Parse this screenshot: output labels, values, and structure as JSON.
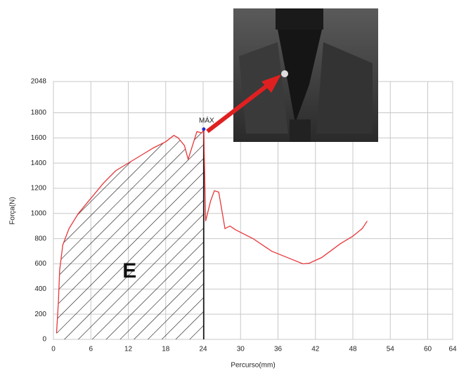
{
  "chart_data": {
    "type": "line",
    "x_label": "Percurso(mm)",
    "y_label": "Força(N)",
    "x": [
      0.5,
      0.8,
      1,
      1.5,
      2.5,
      4,
      6,
      8,
      10,
      12,
      14,
      16,
      18,
      19.3,
      20,
      21,
      21.6,
      23,
      23.8,
      24.1,
      24.4,
      25.2,
      25.8,
      26.5,
      27.5,
      28.3,
      29.2,
      32,
      35,
      38,
      40,
      41,
      43,
      46,
      48,
      49.5,
      50.3
    ],
    "series": [
      {
        "color": "#e8363a",
        "values": [
          50,
          300,
          550,
          750,
          880,
          1000,
          1120,
          1240,
          1340,
          1400,
          1460,
          1520,
          1570,
          1620,
          1600,
          1540,
          1430,
          1650,
          1640,
          1670,
          940,
          1100,
          1180,
          1170,
          880,
          900,
          870,
          800,
          700,
          640,
          600,
          605,
          650,
          760,
          820,
          880,
          940
        ]
      }
    ],
    "xlim": [
      0,
      64
    ],
    "xticks": [
      0,
      6,
      12,
      18,
      24,
      30,
      36,
      42,
      48,
      54,
      60,
      64
    ],
    "ylim": [
      0,
      2048
    ],
    "yticks": [
      0,
      200,
      400,
      600,
      800,
      1000,
      1200,
      1400,
      1600,
      1800,
      2048
    ],
    "grid": true,
    "max_label": "MÁX",
    "area_label": "E",
    "max_color": "#2030d0"
  }
}
